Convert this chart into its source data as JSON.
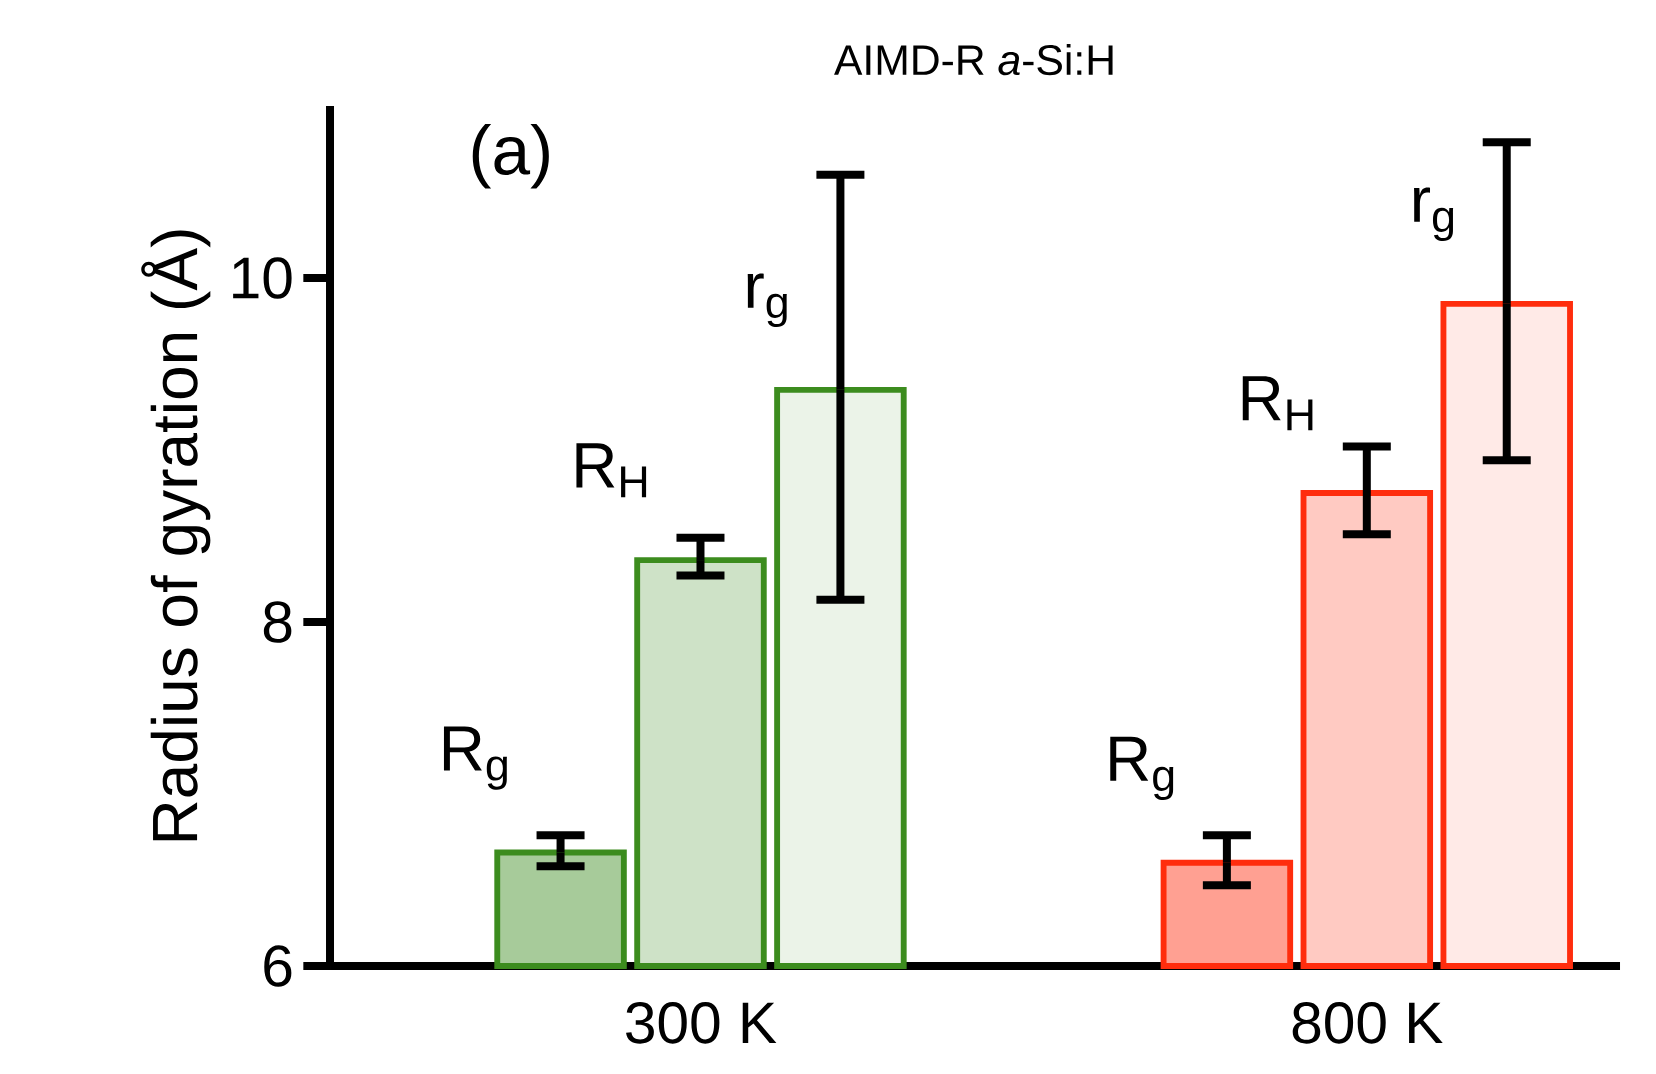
{
  "chart_data": {
    "type": "bar",
    "title": "AIMD-R *a*-Si:H",
    "ylabel": "Radius of gyration  (Å)",
    "annotations": [
      "(a)"
    ],
    "categories": [
      "300 K",
      "800 K"
    ],
    "ylim": [
      6,
      11
    ],
    "yticks": [
      6,
      8,
      10
    ],
    "legend": false,
    "series": [
      {
        "name": "R$_{g}$",
        "colors": [
          "#3c8c1e",
          "#ff2d0d"
        ],
        "values": [
          6.66,
          6.6
        ],
        "errors": [
          [
            6.58,
            6.76
          ],
          [
            6.47,
            6.76
          ]
        ]
      },
      {
        "name": "R$_{H}$",
        "colors": [
          "#3c8c1e",
          "#ff2d0d"
        ],
        "values": [
          8.36,
          8.75
        ],
        "errors": [
          [
            8.27,
            8.49
          ],
          [
            8.51,
            9.02
          ]
        ]
      },
      {
        "name": "r$_{g}$",
        "colors": [
          "#3c8c1e",
          "#ff2d0d"
        ],
        "values": [
          9.35,
          9.85
        ],
        "errors": [
          [
            8.13,
            10.6
          ],
          [
            8.94,
            10.79
          ]
        ]
      }
    ]
  }
}
